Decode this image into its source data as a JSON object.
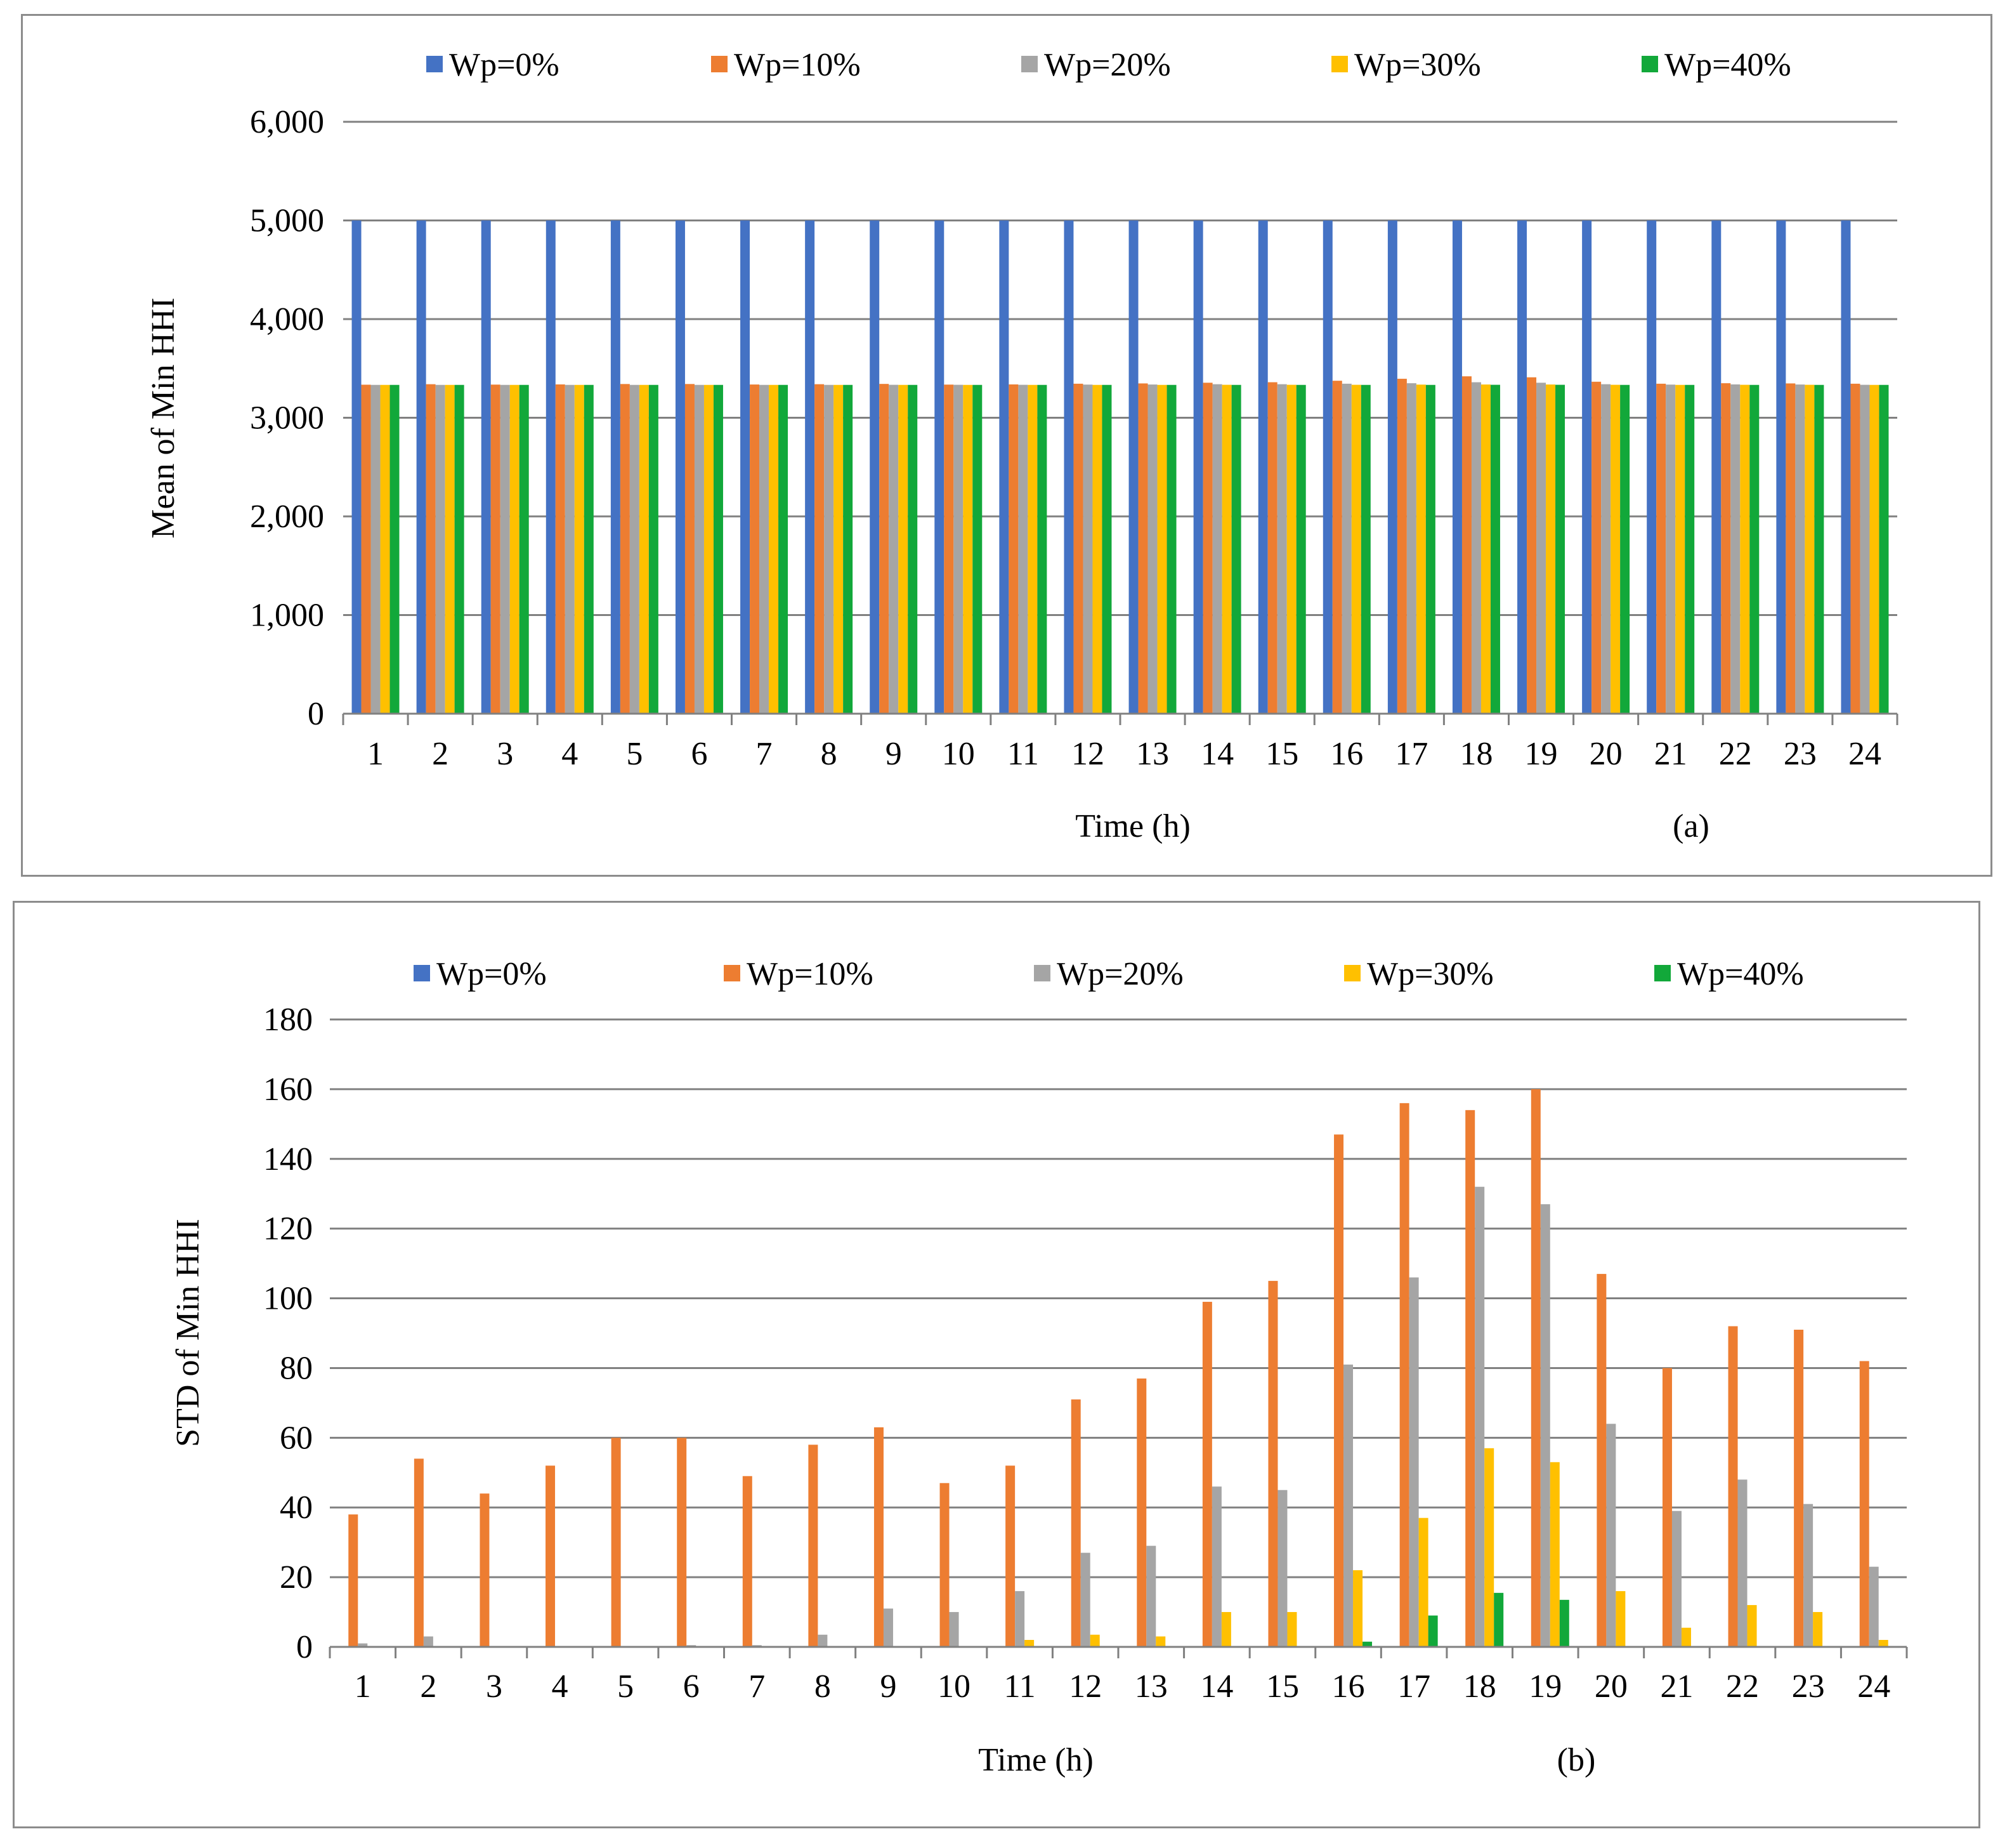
{
  "chart_data": [
    {
      "type": "bar",
      "panel_label": "(a)",
      "xlabel": "Time (h)",
      "ylabel": "Mean of Min HHI",
      "ylim": [
        0,
        6000
      ],
      "yticks": [
        "0",
        "1,000",
        "2,000",
        "3,000",
        "4,000",
        "5,000",
        "6,000"
      ],
      "ytick_values": [
        0,
        1000,
        2000,
        3000,
        4000,
        5000,
        6000
      ],
      "categories": [
        "1",
        "2",
        "3",
        "4",
        "5",
        "6",
        "7",
        "8",
        "9",
        "10",
        "11",
        "12",
        "13",
        "14",
        "15",
        "16",
        "17",
        "18",
        "19",
        "20",
        "21",
        "22",
        "23",
        "24"
      ],
      "legend_position": "top",
      "series": [
        {
          "name": "Wp=0%",
          "values": [
            5000,
            5000,
            5000,
            5000,
            5000,
            5000,
            5000,
            5000,
            5000,
            5000,
            5000,
            5000,
            5000,
            5000,
            5000,
            5000,
            5000,
            5000,
            5000,
            5000,
            5000,
            5000,
            5000,
            5000
          ]
        },
        {
          "name": "Wp=10%",
          "values": [
            3335,
            3340,
            3336,
            3338,
            3342,
            3342,
            3337,
            3340,
            3343,
            3336,
            3338,
            3345,
            3348,
            3355,
            3360,
            3375,
            3395,
            3420,
            3410,
            3365,
            3345,
            3350,
            3348,
            3345
          ]
        },
        {
          "name": "Wp=20%",
          "values": [
            3333,
            3333,
            3333,
            3333,
            3333,
            3333,
            3333,
            3333,
            3334,
            3334,
            3334,
            3336,
            3337,
            3340,
            3340,
            3345,
            3350,
            3360,
            3355,
            3340,
            3336,
            3338,
            3337,
            3334
          ]
        },
        {
          "name": "Wp=30%",
          "values": [
            3333,
            3333,
            3333,
            3333,
            3333,
            3333,
            3333,
            3333,
            3333,
            3333,
            3333,
            3333,
            3333,
            3334,
            3334,
            3334,
            3336,
            3337,
            3337,
            3334,
            3333,
            3334,
            3334,
            3333
          ]
        },
        {
          "name": "Wp=40%",
          "values": [
            3333,
            3333,
            3333,
            3333,
            3333,
            3333,
            3333,
            3333,
            3333,
            3333,
            3333,
            3333,
            3333,
            3333,
            3333,
            3333,
            3333,
            3334,
            3334,
            3333,
            3333,
            3333,
            3333,
            3333
          ]
        }
      ]
    },
    {
      "type": "bar",
      "panel_label": "(b)",
      "xlabel": "Time (h)",
      "ylabel": "STD of Min HHI",
      "ylim": [
        0,
        180
      ],
      "yticks": [
        "0",
        "20",
        "40",
        "60",
        "80",
        "100",
        "120",
        "140",
        "160",
        "180"
      ],
      "ytick_values": [
        0,
        20,
        40,
        60,
        80,
        100,
        120,
        140,
        160,
        180
      ],
      "categories": [
        "1",
        "2",
        "3",
        "4",
        "5",
        "6",
        "7",
        "8",
        "9",
        "10",
        "11",
        "12",
        "13",
        "14",
        "15",
        "16",
        "17",
        "18",
        "19",
        "20",
        "21",
        "22",
        "23",
        "24"
      ],
      "legend_position": "top",
      "series": [
        {
          "name": "Wp=0%",
          "values": [
            0,
            0,
            0,
            0,
            0,
            0,
            0,
            0,
            0,
            0,
            0,
            0,
            0,
            0,
            0,
            0,
            0,
            0,
            0,
            0,
            0,
            0,
            0,
            0
          ]
        },
        {
          "name": "Wp=10%",
          "values": [
            38,
            54,
            44,
            52,
            60,
            60,
            49,
            58,
            63,
            47,
            52,
            71,
            77,
            99,
            105,
            147,
            156,
            154,
            160,
            107,
            80,
            92,
            91,
            82
          ]
        },
        {
          "name": "Wp=20%",
          "values": [
            1,
            3,
            0,
            0,
            0,
            0.5,
            0.5,
            3.5,
            11,
            10,
            16,
            27,
            29,
            46,
            45,
            81,
            106,
            132,
            127,
            64,
            39,
            48,
            41,
            23
          ]
        },
        {
          "name": "Wp=30%",
          "values": [
            0,
            0,
            0,
            0,
            0,
            0,
            0,
            0,
            0,
            0,
            2,
            3.5,
            3,
            10,
            10,
            22,
            37,
            57,
            53,
            16,
            5.5,
            12,
            10,
            2
          ]
        },
        {
          "name": "Wp=40%",
          "values": [
            0,
            0,
            0,
            0,
            0,
            0,
            0,
            0,
            0,
            0,
            0,
            0,
            0,
            0,
            0,
            1.5,
            9,
            15.5,
            13.5,
            0,
            0,
            0,
            0,
            0
          ]
        }
      ]
    }
  ],
  "colors": {
    "Wp=0%": "#4472C4",
    "Wp=10%": "#ED7D31",
    "Wp=20%": "#A5A5A5",
    "Wp=30%": "#FFC000",
    "Wp=40%": "#12A83A",
    "grid": "#808080",
    "axis": "#808080"
  }
}
